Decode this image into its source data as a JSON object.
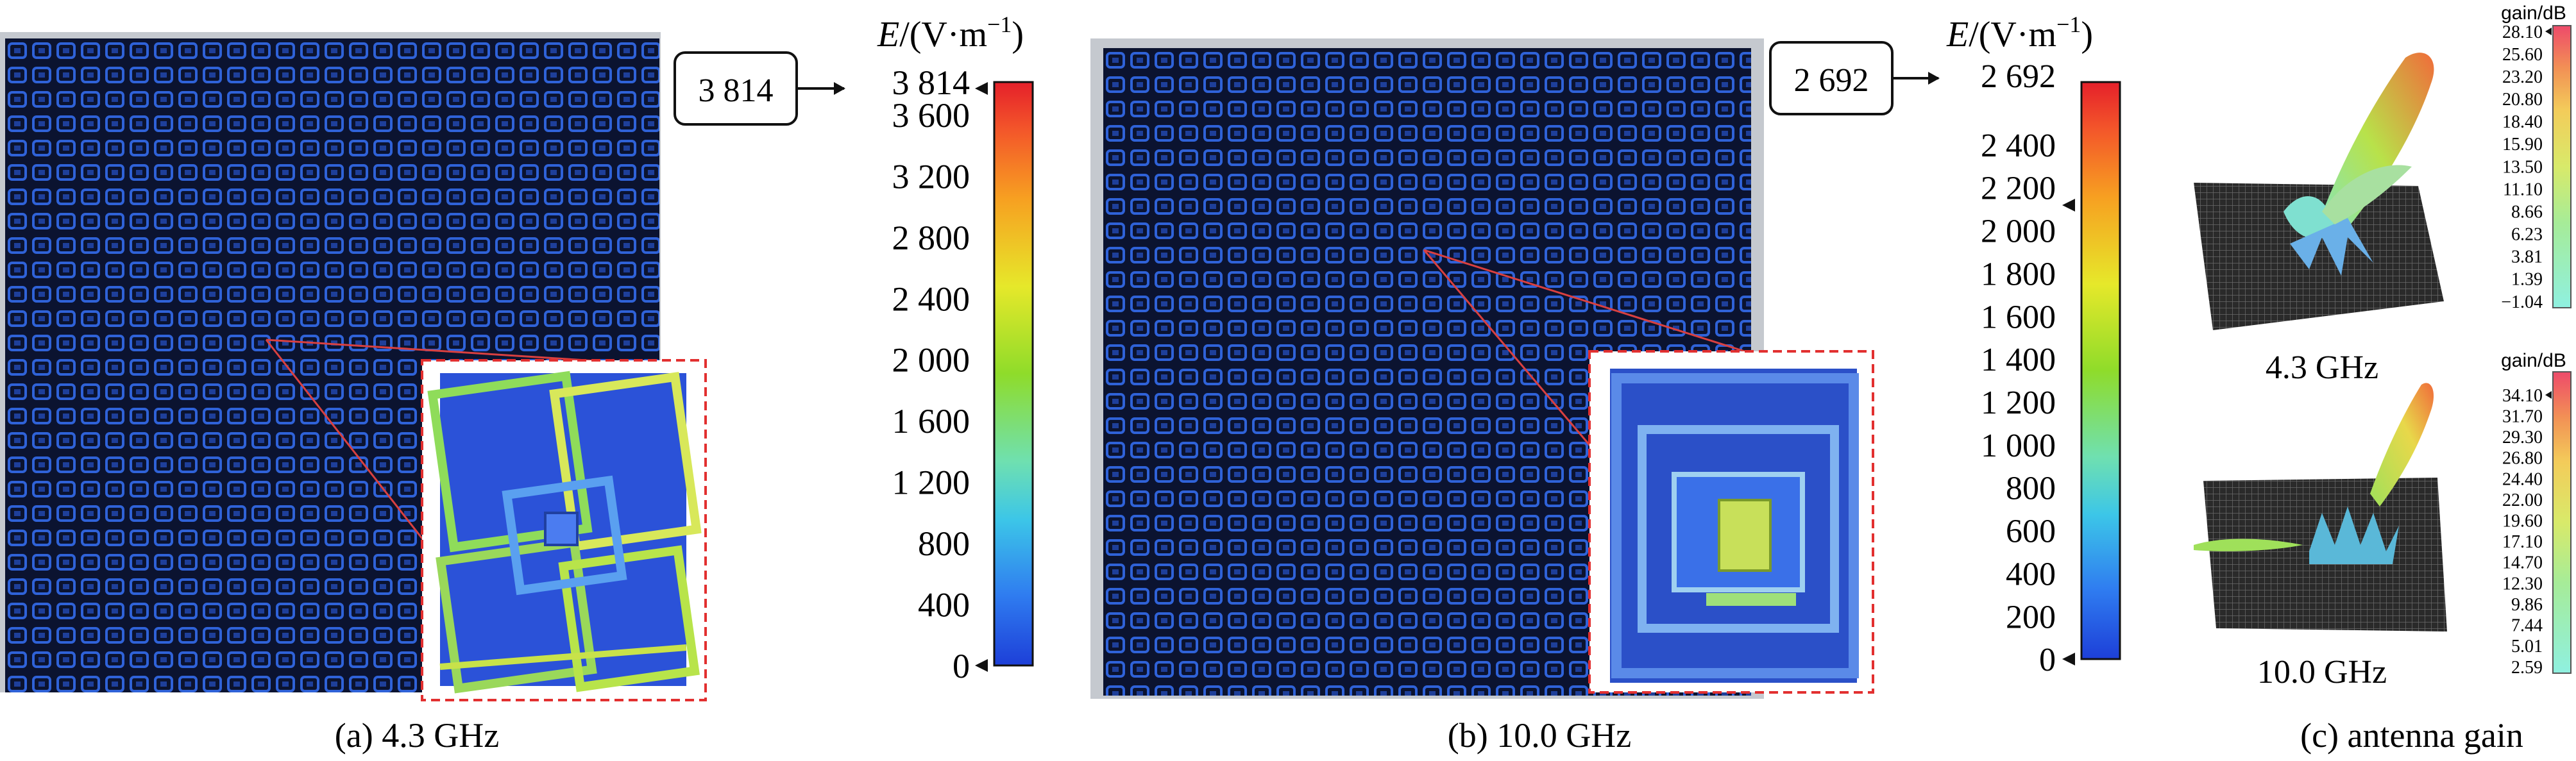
{
  "panel_a": {
    "max_box": "3 814",
    "unit_label": "/(V·m",
    "unit_sym": "E",
    "unit_exp": "−1",
    "ticks": [
      "3 814",
      "3 600",
      "3 200",
      "2 800",
      "2 400",
      "2 000",
      "1 600",
      "1 200",
      "800",
      "400",
      "0"
    ],
    "caption": "(a) 4.3 GHz"
  },
  "panel_b": {
    "max_box": "2 692",
    "unit_label": "/(V·m",
    "unit_sym": "E",
    "unit_exp": "−1",
    "ticks": [
      "2 692",
      "2 400",
      "2 200",
      "2 000",
      "1 800",
      "1 600",
      "1 400",
      "1 200",
      "1 000",
      "800",
      "600",
      "400",
      "200",
      "0"
    ],
    "caption": "(b) 10.0 GHz"
  },
  "panel_c": {
    "top": {
      "unit": "gain/dB",
      "freq": "4.3 GHz",
      "ticks": [
        "28.10",
        "25.60",
        "23.20",
        "20.80",
        "18.40",
        "15.90",
        "13.50",
        "11.10",
        "8.66",
        "6.23",
        "3.81",
        "1.39",
        "−1.04"
      ]
    },
    "bottom": {
      "unit": "gain/dB",
      "freq": "10.0 GHz",
      "ticks": [
        "34.10",
        "31.70",
        "29.30",
        "26.80",
        "24.40",
        "22.00",
        "19.60",
        "17.10",
        "14.70",
        "12.30",
        "9.86",
        "7.44",
        "5.01",
        "2.59"
      ]
    },
    "caption": "(c) antenna gain"
  },
  "colors": {
    "array_bg": "#0b1330",
    "cell": "#2f62d8",
    "inset_border": "#e23030",
    "leader": "#d94040"
  }
}
